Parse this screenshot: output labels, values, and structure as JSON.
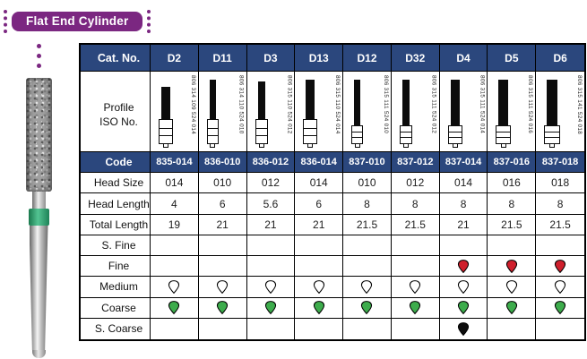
{
  "title": "Flat End Cylinder",
  "colors": {
    "banner_purple": "#7b2781",
    "header_navy": "#2b477d",
    "band_green": "#2a9467",
    "drops": {
      "white": "#ffffff",
      "red": "#cf1f2c",
      "green": "#3dac4c",
      "black": "#0e0e0e"
    }
  },
  "table": {
    "header_label": "Cat. No.",
    "profile_label_line1": "Profile",
    "profile_label_line2": "ISO No.",
    "spec_rows": [
      {
        "key": "code",
        "label": "Code",
        "type": "text",
        "navy": true
      },
      {
        "key": "head_size",
        "label": "Head Size",
        "type": "text",
        "navy": false
      },
      {
        "key": "head_length",
        "label": "Head Length",
        "type": "text",
        "navy": false
      },
      {
        "key": "total_length",
        "label": "Total Length",
        "type": "text",
        "navy": false
      },
      {
        "key": "s_fine",
        "label": "S. Fine",
        "type": "marker",
        "navy": false
      },
      {
        "key": "fine",
        "label": "Fine",
        "type": "marker",
        "navy": false
      },
      {
        "key": "medium",
        "label": "Medium",
        "type": "marker",
        "navy": false
      },
      {
        "key": "coarse",
        "label": "Coarse",
        "type": "marker",
        "navy": false
      },
      {
        "key": "s_coarse",
        "label": "S. Coarse",
        "type": "marker",
        "navy": false
      }
    ],
    "columns": [
      {
        "cat": "D2",
        "iso": "806 314 109 524 014",
        "code": "835-014",
        "head_size": "014",
        "head_length": "4",
        "total_length": "19",
        "s_fine": "",
        "fine": "",
        "medium": "white",
        "coarse": "green",
        "s_coarse": ""
      },
      {
        "cat": "D11",
        "iso": "806 314 110 524 010",
        "code": "836-010",
        "head_size": "010",
        "head_length": "6",
        "total_length": "21",
        "s_fine": "",
        "fine": "",
        "medium": "white",
        "coarse": "green",
        "s_coarse": ""
      },
      {
        "cat": "D3",
        "iso": "806 315 110 524 012",
        "code": "836-012",
        "head_size": "012",
        "head_length": "5.6",
        "total_length": "21",
        "s_fine": "",
        "fine": "",
        "medium": "white",
        "coarse": "green",
        "s_coarse": ""
      },
      {
        "cat": "D13",
        "iso": "806 315 110 524 014",
        "code": "836-014",
        "head_size": "014",
        "head_length": "6",
        "total_length": "21",
        "s_fine": "",
        "fine": "",
        "medium": "white",
        "coarse": "green",
        "s_coarse": ""
      },
      {
        "cat": "D12",
        "iso": "806 315 111 524 010",
        "code": "837-010",
        "head_size": "010",
        "head_length": "8",
        "total_length": "21.5",
        "s_fine": "",
        "fine": "",
        "medium": "white",
        "coarse": "green",
        "s_coarse": ""
      },
      {
        "cat": "D32",
        "iso": "806 315 111 524 012",
        "code": "837-012",
        "head_size": "012",
        "head_length": "8",
        "total_length": "21.5",
        "s_fine": "",
        "fine": "",
        "medium": "white",
        "coarse": "green",
        "s_coarse": ""
      },
      {
        "cat": "D4",
        "iso": "806 315 111 524 014",
        "code": "837-014",
        "head_size": "014",
        "head_length": "8",
        "total_length": "21",
        "s_fine": "",
        "fine": "red",
        "medium": "white",
        "coarse": "green",
        "s_coarse": "black"
      },
      {
        "cat": "D5",
        "iso": "806 315 111 524 016",
        "code": "837-016",
        "head_size": "016",
        "head_length": "8",
        "total_length": "21.5",
        "s_fine": "",
        "fine": "red",
        "medium": "white",
        "coarse": "green",
        "s_coarse": ""
      },
      {
        "cat": "D6",
        "iso": "806 315 141 524 018",
        "code": "837-018",
        "head_size": "018",
        "head_length": "8",
        "total_length": "21.5",
        "s_fine": "",
        "fine": "red",
        "medium": "white",
        "coarse": "green",
        "s_coarse": ""
      }
    ]
  }
}
